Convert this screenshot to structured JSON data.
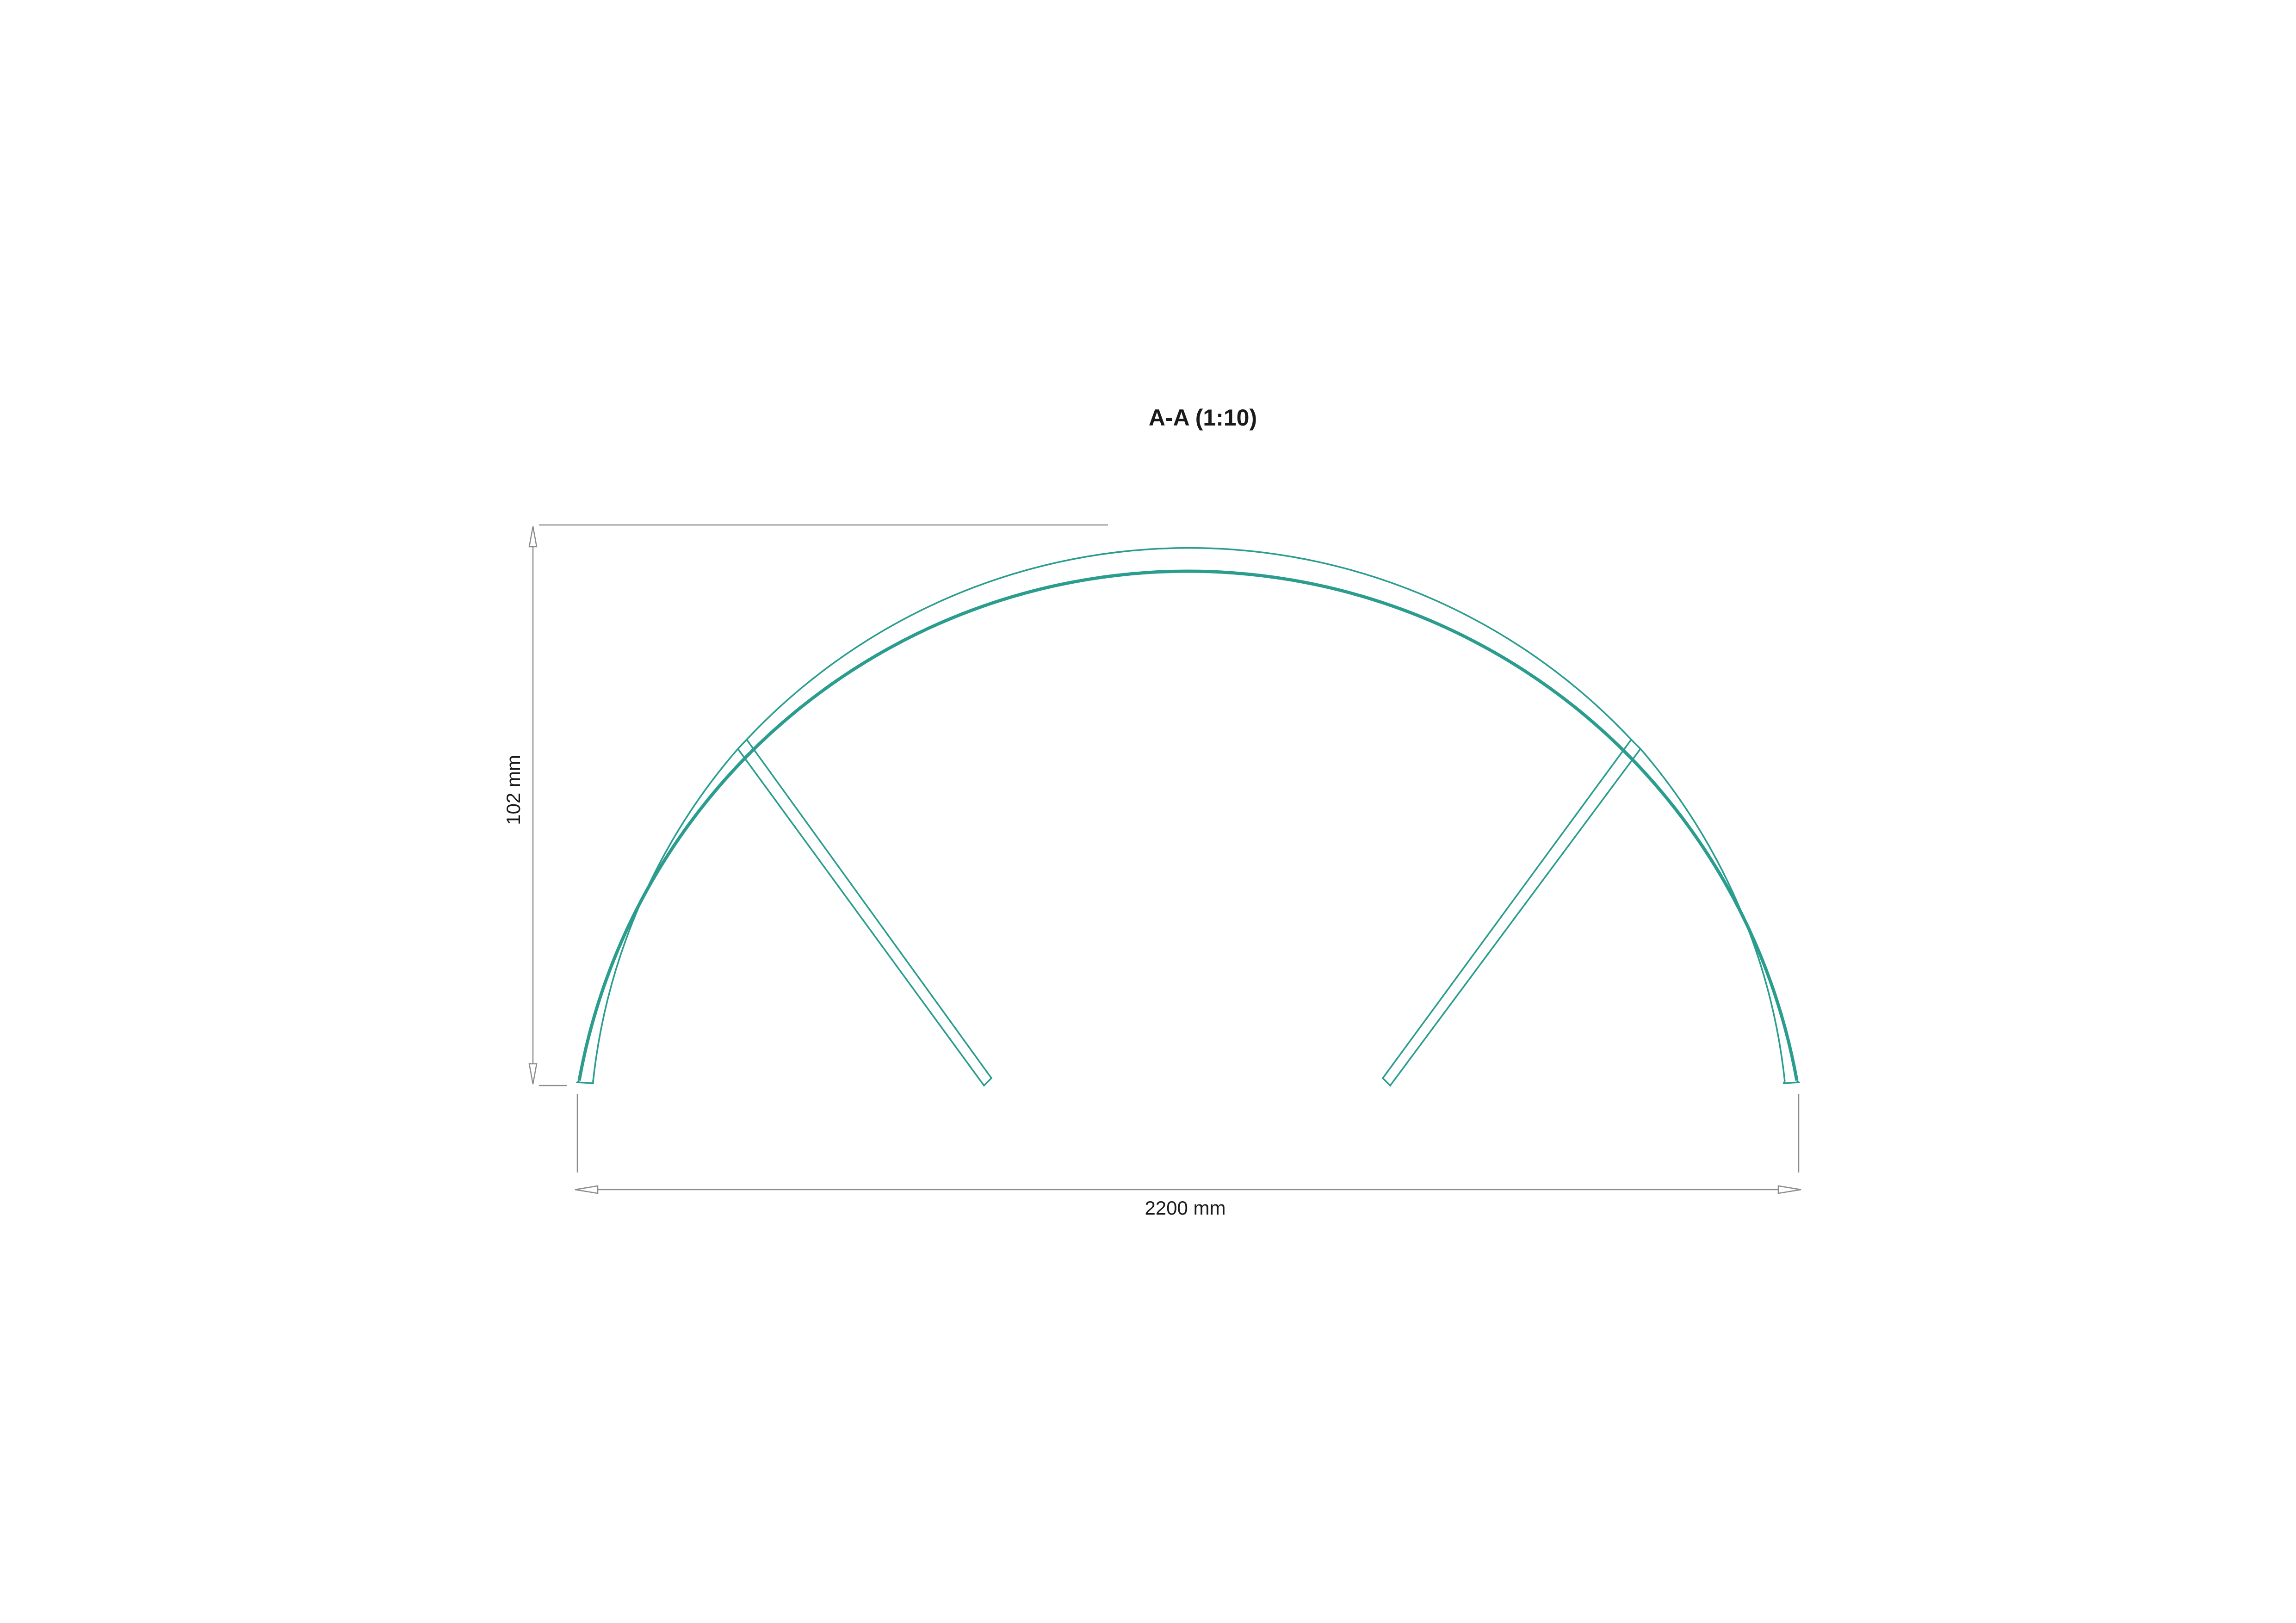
{
  "drawing": {
    "section_title": "A-A (1:10)",
    "dimensions": {
      "height_label": "102 mm",
      "width_label": "2200 mm"
    },
    "colors": {
      "profile": "#2a9d8f",
      "dimension_lines": "#8c8c8c",
      "text": "#1a1a1a",
      "background": "#ffffff"
    }
  }
}
